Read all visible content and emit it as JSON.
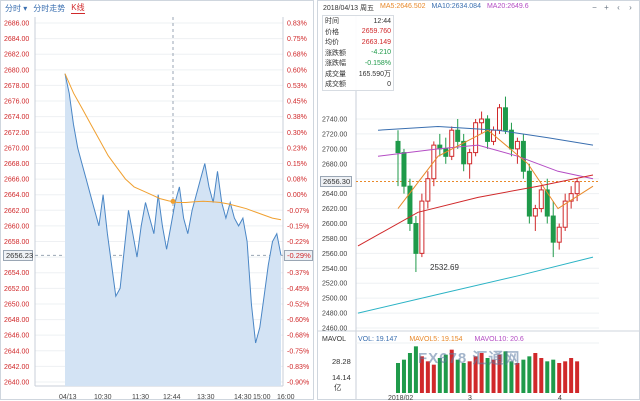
{
  "left": {
    "tabs": [
      {
        "label": "分时",
        "has_dropdown": true
      },
      {
        "label": "分时走势"
      },
      {
        "label": "K线"
      }
    ],
    "active_tab": 2,
    "price_ticks": [
      "2686.00",
      "2684.00",
      "2682.00",
      "2680.00",
      "2678.00",
      "2676.00",
      "2674.00",
      "2672.00",
      "2670.00",
      "2668.00",
      "2666.00",
      "2664.00",
      "2662.00",
      "2660.00",
      "2658.00",
      "2656.00",
      "2654.00",
      "2652.00",
      "2650.00",
      "2648.00",
      "2646.00",
      "2644.00",
      "2642.00",
      "2640.00"
    ],
    "pct_ticks": [
      "0.83%",
      "0.75%",
      "0.68%",
      "0.60%",
      "0.53%",
      "0.45%",
      "0.38%",
      "0.30%",
      "0.23%",
      "0.15%",
      "0.08%",
      "0.00%",
      "-0.07%",
      "-0.15%",
      "-0.22%",
      "-0.29%",
      "-0.37%",
      "-0.45%",
      "-0.52%",
      "-0.60%",
      "-0.68%",
      "-0.75%",
      "-0.83%",
      "-0.90%"
    ],
    "pct_colors": {
      "up": "#d0282a",
      "flat": "#d0282a",
      "down": "#d0282a"
    },
    "time_ticks": [
      "04/13",
      "10:30",
      "11:30",
      "12:44",
      "13:30",
      "14:30",
      "15:00",
      "16:00"
    ],
    "current_price": "2656.23",
    "current_pct": "-0.29%"
  },
  "right": {
    "date_label": "2018/04/13 周五",
    "ma": [
      {
        "name": "MA5:",
        "value": "2646.502",
        "color": "#e8892b"
      },
      {
        "name": "MA10:",
        "value": "2634.084",
        "color": "#3a6fb0"
      },
      {
        "name": "MA20:",
        "value": "2649.6",
        "color": "#b44cc4"
      },
      {
        "name": "MA60:",
        "value": "...",
        "color": "#e0a13a"
      }
    ],
    "tooltip": [
      {
        "k": "时间",
        "v": "12:44"
      },
      {
        "k": "价格",
        "v": "2659.760"
      },
      {
        "k": "均价",
        "v": "2663.149"
      },
      {
        "k": "涨跌额",
        "v": "-4.210"
      },
      {
        "k": "涨跌幅",
        "v": "-0.158%"
      },
      {
        "k": "成交量",
        "v": "165.590万"
      },
      {
        "k": "成交额",
        "v": "0"
      }
    ],
    "price_ticks": [
      "2740.00",
      "2720.00",
      "2700.00",
      "2680.00",
      "2660.00",
      "2640.00",
      "2620.00",
      "2600.00",
      "2580.00",
      "2560.00",
      "2540.00",
      "2520.00",
      "2500.00",
      "2480.00",
      "2460.00"
    ],
    "current_price": "2656.30",
    "low_label": "2532.69",
    "volume": {
      "title": "MAVOL",
      "vol": "VOL: 19.147",
      "mavol5": "MAVOL5: 19.154",
      "mavol10": "MAVOL10: 20.6"
    },
    "vol_ticks": [
      "28.28",
      "14.14",
      "亿"
    ],
    "date_ticks": [
      "2018/02",
      "3",
      "4"
    ],
    "icons": [
      "minus-icon",
      "plus-icon",
      "left-icon",
      "right-icon"
    ],
    "watermark": "FX678 汇通网"
  },
  "colors": {
    "line": "#4a86c5",
    "avg": "#f0a030",
    "up": "#d0282a",
    "down": "#1f9a4a",
    "fill": "#d3e3f4"
  }
}
